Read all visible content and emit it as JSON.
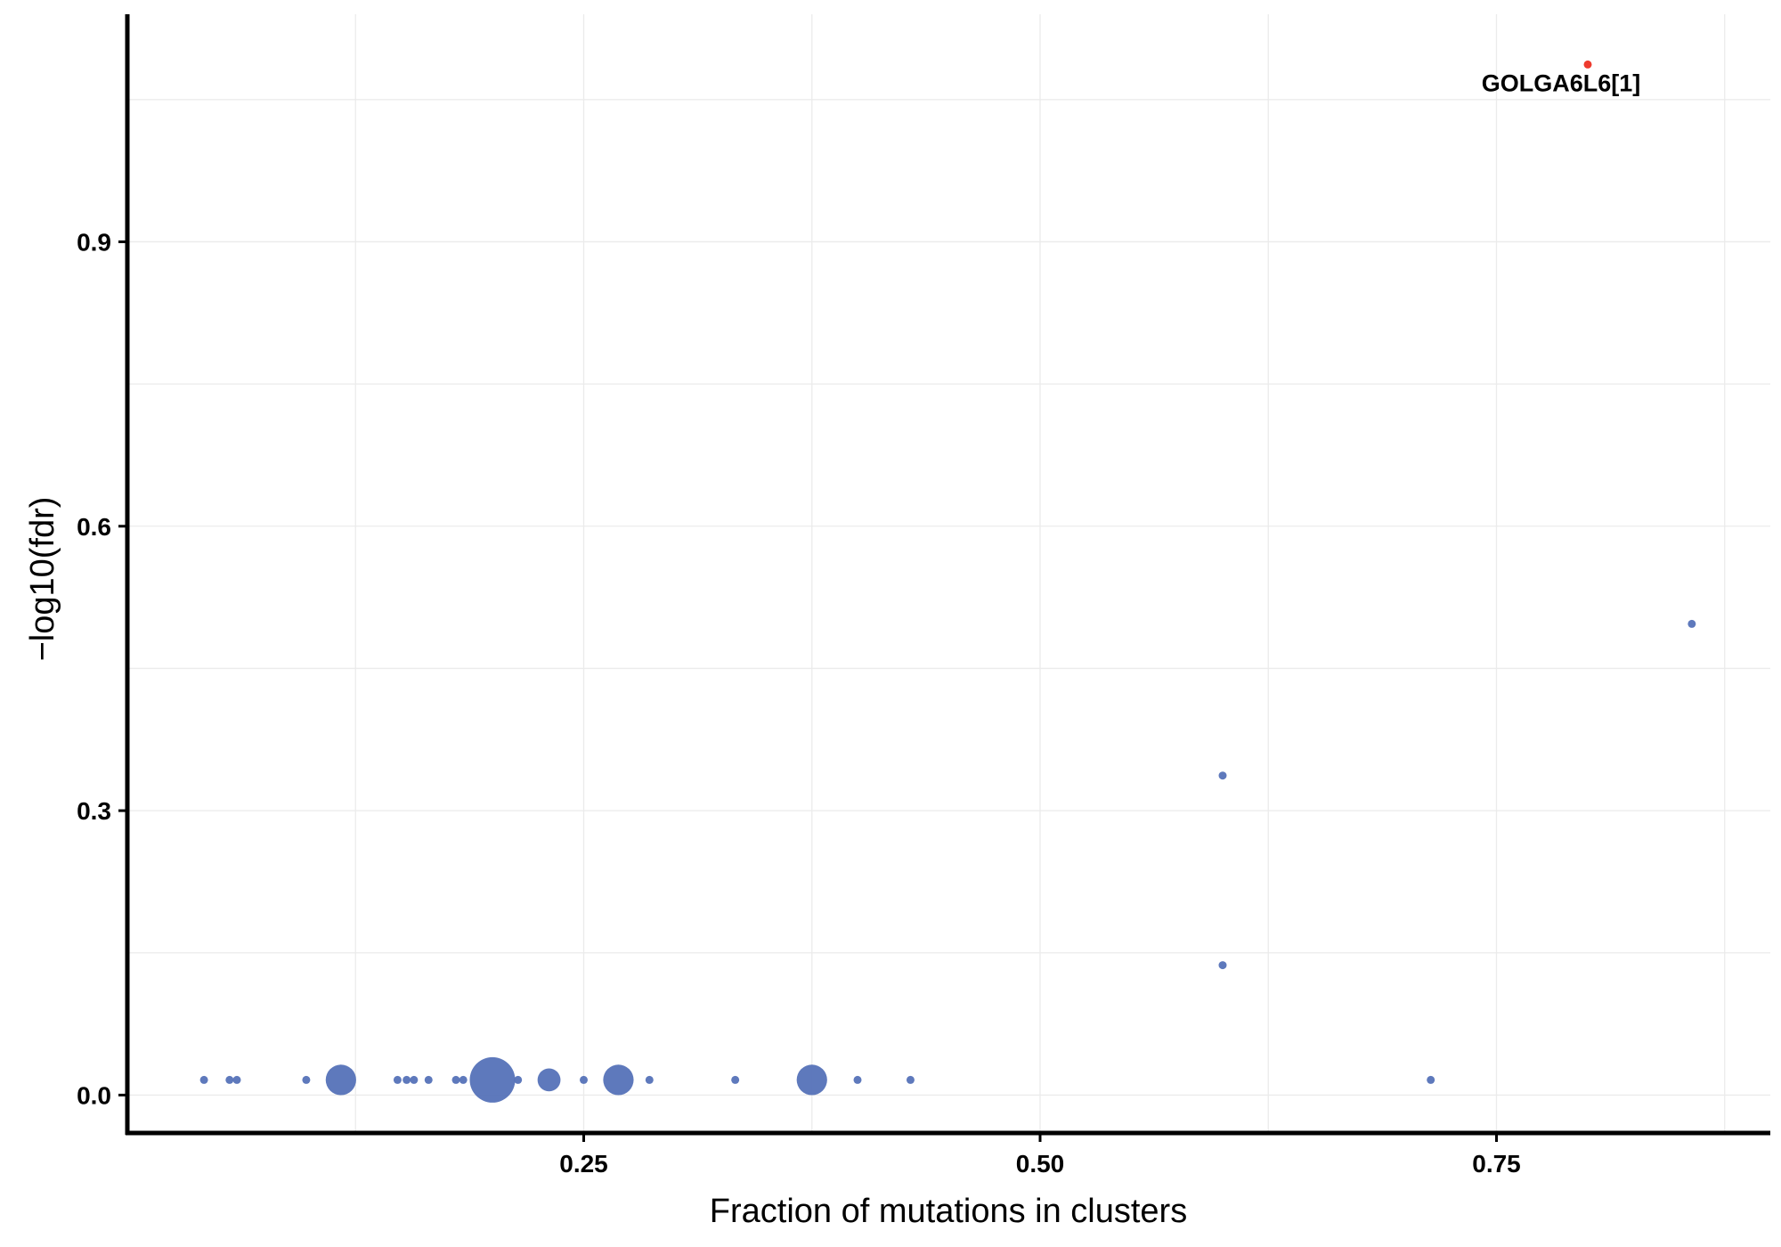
{
  "chart_data": {
    "type": "scatter",
    "xlabel": "Fraction of mutations in clusters",
    "ylabel": "−log10(fdr)",
    "xlim": [
      0.0,
      0.9
    ],
    "ylim": [
      -0.04,
      1.14
    ],
    "x_ticks": [
      0.25,
      0.5,
      0.75
    ],
    "x_tick_labels": [
      "0.25",
      "0.50",
      "0.75"
    ],
    "y_ticks": [
      0.0,
      0.3,
      0.6,
      0.9
    ],
    "y_tick_labels": [
      "0.0",
      "0.3",
      "0.6",
      "0.9"
    ],
    "grid": true,
    "colors": {
      "default": "#5572b8",
      "highlight": "#ee3b2e"
    },
    "points": [
      {
        "x": 0.042,
        "y": 0.016,
        "size": 1
      },
      {
        "x": 0.056,
        "y": 0.016,
        "size": 1
      },
      {
        "x": 0.06,
        "y": 0.016,
        "size": 1
      },
      {
        "x": 0.098,
        "y": 0.016,
        "size": 1
      },
      {
        "x": 0.117,
        "y": 0.016,
        "size": 4
      },
      {
        "x": 0.148,
        "y": 0.016,
        "size": 1
      },
      {
        "x": 0.153,
        "y": 0.016,
        "size": 1
      },
      {
        "x": 0.157,
        "y": 0.016,
        "size": 1
      },
      {
        "x": 0.165,
        "y": 0.016,
        "size": 1
      },
      {
        "x": 0.18,
        "y": 0.016,
        "size": 1
      },
      {
        "x": 0.184,
        "y": 0.016,
        "size": 1
      },
      {
        "x": 0.2,
        "y": 0.016,
        "size": 6
      },
      {
        "x": 0.214,
        "y": 0.016,
        "size": 1
      },
      {
        "x": 0.231,
        "y": 0.016,
        "size": 3
      },
      {
        "x": 0.25,
        "y": 0.016,
        "size": 1
      },
      {
        "x": 0.269,
        "y": 0.016,
        "size": 4
      },
      {
        "x": 0.286,
        "y": 0.016,
        "size": 1
      },
      {
        "x": 0.333,
        "y": 0.016,
        "size": 1
      },
      {
        "x": 0.375,
        "y": 0.016,
        "size": 4
      },
      {
        "x": 0.4,
        "y": 0.016,
        "size": 1
      },
      {
        "x": 0.429,
        "y": 0.016,
        "size": 1
      },
      {
        "x": 0.6,
        "y": 0.137,
        "size": 1
      },
      {
        "x": 0.6,
        "y": 0.337,
        "size": 1
      },
      {
        "x": 0.714,
        "y": 0.016,
        "size": 1
      },
      {
        "x": 0.857,
        "y": 0.497,
        "size": 1
      },
      {
        "x": 0.8,
        "y": 1.087,
        "size": 1,
        "highlight": true,
        "label": "GOLGA6L6[1]"
      }
    ]
  }
}
